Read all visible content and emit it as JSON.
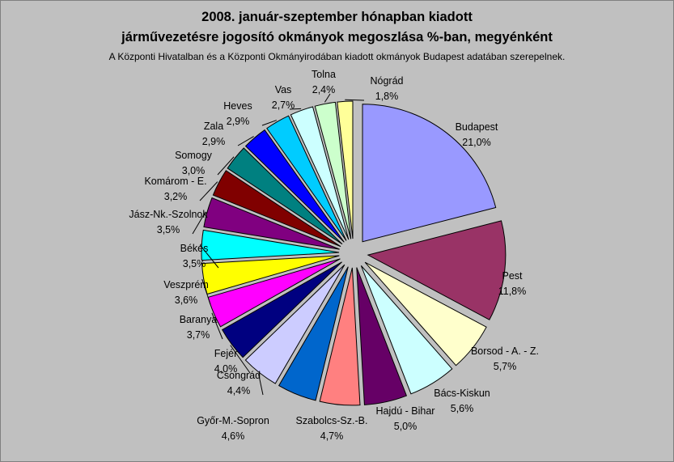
{
  "chart_data": {
    "type": "pie",
    "exploded": true,
    "title_line1": "2008. január-szeptember hónapban kiadott",
    "title_line2": "járművezetésre jogosító okmányok megoszlása %-ban, megyénként",
    "subtitle": "A Központi Hivatalban és a Központi Okmányirodában kiadott okmányok Budapest adatában szerepelnek.",
    "slices": [
      {
        "label": "Budapest",
        "value": 21.0,
        "display": "21,0%",
        "color": "#9999ff"
      },
      {
        "label": "Pest",
        "value": 11.8,
        "display": "11,8%",
        "color": "#993366"
      },
      {
        "label": "Borsod - A. - Z.",
        "value": 5.7,
        "display": "5,7%",
        "color": "#ffffcc"
      },
      {
        "label": "Bács-Kiskun",
        "value": 5.6,
        "display": "5,6%",
        "color": "#ccffff"
      },
      {
        "label": "Hajdú - Bihar",
        "value": 5.0,
        "display": "5,0%",
        "color": "#660066"
      },
      {
        "label": "Szabolcs-Sz.-B.",
        "value": 4.7,
        "display": "4,7%",
        "color": "#ff8080"
      },
      {
        "label": "Győr-M.-Sopron",
        "value": 4.6,
        "display": "4,6%",
        "color": "#0066cc"
      },
      {
        "label": "Csongrád",
        "value": 4.4,
        "display": "4,4%",
        "color": "#ccccff"
      },
      {
        "label": "Fejér",
        "value": 4.0,
        "display": "4,0%",
        "color": "#000080"
      },
      {
        "label": "Baranya",
        "value": 3.7,
        "display": "3,7%",
        "color": "#ff00ff"
      },
      {
        "label": "Veszprém",
        "value": 3.6,
        "display": "3,6%",
        "color": "#ffff00"
      },
      {
        "label": "Békés",
        "value": 3.5,
        "display": "3,5%",
        "color": "#00ffff"
      },
      {
        "label": "Jász-Nk.-Szolnok",
        "value": 3.5,
        "display": "3,5%",
        "color": "#800080"
      },
      {
        "label": "Komárom - E.",
        "value": 3.2,
        "display": "3,2%",
        "color": "#800000"
      },
      {
        "label": "Somogy",
        "value": 3.0,
        "display": "3,0%",
        "color": "#008080"
      },
      {
        "label": "Zala",
        "value": 2.9,
        "display": "2,9%",
        "color": "#0000ff"
      },
      {
        "label": "Heves",
        "value": 2.9,
        "display": "2,9%",
        "color": "#00ccff"
      },
      {
        "label": "Vas",
        "value": 2.7,
        "display": "2,7%",
        "color": "#ccffff"
      },
      {
        "label": "Tolna",
        "value": 2.4,
        "display": "2,4%",
        "color": "#ccffcc"
      },
      {
        "label": "Nógrád",
        "value": 1.8,
        "display": "1,8%",
        "color": "#ffff99"
      }
    ],
    "legend": "none"
  }
}
